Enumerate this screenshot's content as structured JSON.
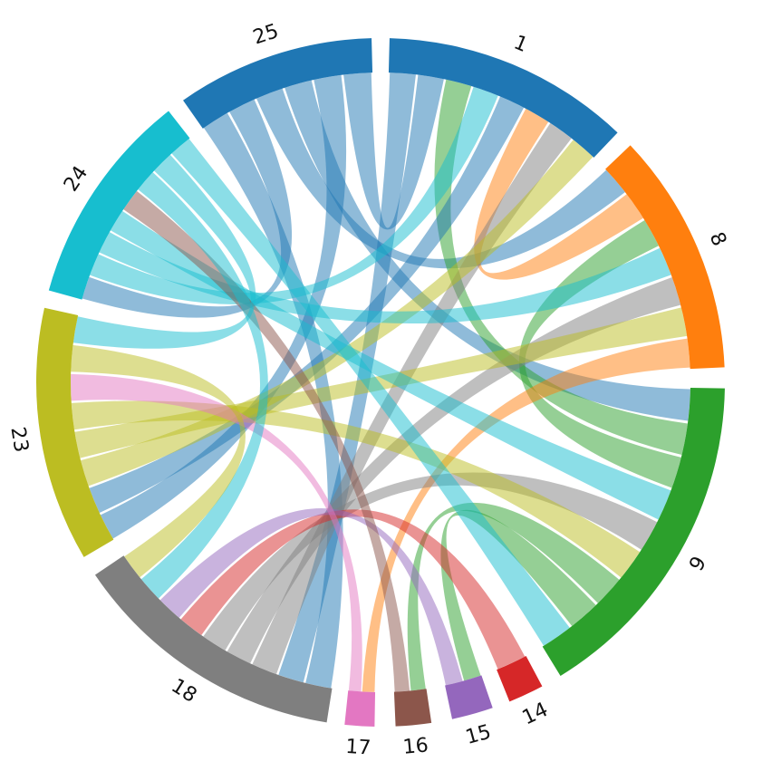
{
  "diagram": {
    "type": "chord",
    "groups": [
      {
        "id": "1",
        "label": "1",
        "color": "#1f77b4"
      },
      {
        "id": "8",
        "label": "8",
        "color": "#ff7f0e"
      },
      {
        "id": "9",
        "label": "9",
        "color": "#2ca02c"
      },
      {
        "id": "14",
        "label": "14",
        "color": "#d62728"
      },
      {
        "id": "15",
        "label": "15",
        "color": "#9467bd"
      },
      {
        "id": "16",
        "label": "16",
        "color": "#8c564b"
      },
      {
        "id": "17",
        "label": "17",
        "color": "#e377c2"
      },
      {
        "id": "18",
        "label": "18",
        "color": "#7f7f7f"
      },
      {
        "id": "23",
        "label": "23",
        "color": "#bcbd22"
      },
      {
        "id": "24",
        "label": "24",
        "color": "#17becf"
      },
      {
        "id": "25",
        "label": "25",
        "color": "#1f77b4"
      }
    ],
    "chords": [
      {
        "source": "25",
        "target": "18",
        "color": "#1f77b4"
      },
      {
        "source": "25",
        "target": "24",
        "color": "#1f77b4"
      },
      {
        "source": "25",
        "target": "8",
        "color": "#1f77b4"
      },
      {
        "source": "25",
        "target": "9",
        "color": "#1f77b4"
      },
      {
        "source": "25",
        "target": "23",
        "color": "#1f77b4"
      },
      {
        "source": "1",
        "target": "18",
        "color": "#1f77b4"
      },
      {
        "source": "1",
        "target": "25",
        "color": "#1f77b4"
      },
      {
        "source": "1",
        "target": "9",
        "color": "#2ca02c"
      },
      {
        "source": "1",
        "target": "24",
        "color": "#17becf"
      },
      {
        "source": "1",
        "target": "23",
        "color": "#1f77b4"
      },
      {
        "source": "1",
        "target": "8",
        "color": "#ff7f0e"
      },
      {
        "source": "1",
        "target": "18",
        "color": "#7f7f7f"
      },
      {
        "source": "1",
        "target": "23",
        "color": "#bcbd22"
      },
      {
        "source": "8",
        "target": "9",
        "color": "#2ca02c"
      },
      {
        "source": "8",
        "target": "24",
        "color": "#17becf"
      },
      {
        "source": "8",
        "target": "18",
        "color": "#7f7f7f"
      },
      {
        "source": "8",
        "target": "23",
        "color": "#bcbd22"
      },
      {
        "source": "8",
        "target": "17",
        "color": "#ff7f0e"
      },
      {
        "source": "9",
        "target": "24",
        "color": "#17becf"
      },
      {
        "source": "9",
        "target": "18",
        "color": "#7f7f7f"
      },
      {
        "source": "9",
        "target": "23",
        "color": "#bcbd22"
      },
      {
        "source": "9",
        "target": "16",
        "color": "#2ca02c"
      },
      {
        "source": "9",
        "target": "15",
        "color": "#2ca02c"
      },
      {
        "source": "14",
        "target": "18",
        "color": "#d62728"
      },
      {
        "source": "15",
        "target": "18",
        "color": "#9467bd"
      },
      {
        "source": "16",
        "target": "24",
        "color": "#8c564b"
      },
      {
        "source": "17",
        "target": "23",
        "color": "#e377c2"
      },
      {
        "source": "18",
        "target": "24",
        "color": "#17becf"
      },
      {
        "source": "18",
        "target": "23",
        "color": "#bcbd22"
      },
      {
        "source": "23",
        "target": "24",
        "color": "#17becf"
      },
      {
        "source": "24",
        "target": "9",
        "color": "#17becf"
      }
    ]
  }
}
